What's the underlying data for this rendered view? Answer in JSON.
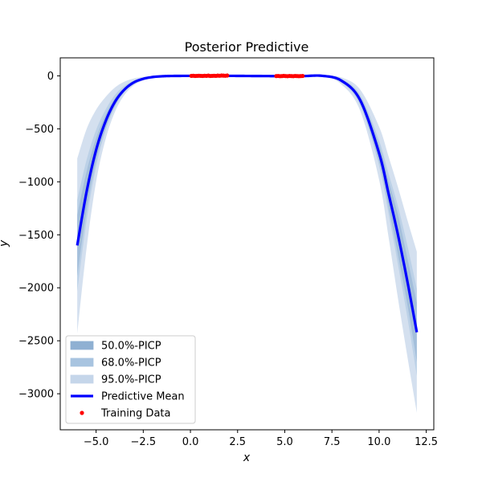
{
  "chart_data": {
    "type": "line",
    "title": "Posterior Predictive",
    "xlabel": "x",
    "ylabel": "y",
    "xlim": [
      -6.9,
      12.9
    ],
    "ylim": [
      -3340,
      170
    ],
    "x_ticks": [
      -5.0,
      -2.5,
      0.0,
      2.5,
      5.0,
      7.5,
      10.0,
      12.5
    ],
    "x_tick_labels": [
      "−5.0",
      "−2.5",
      "0.0",
      "2.5",
      "5.0",
      "7.5",
      "10.0",
      "12.5"
    ],
    "y_ticks": [
      0,
      -500,
      -1000,
      -1500,
      -2000,
      -2500,
      -3000
    ],
    "y_tick_labels": [
      "0",
      "−500",
      "−1000",
      "−1500",
      "−2000",
      "−2500",
      "−3000"
    ],
    "grid": false,
    "legend_placement": "lower-left",
    "series": [
      {
        "name": "Predictive Mean",
        "color": "#0000ff",
        "x": [
          -6,
          -5.5,
          -5,
          -4.5,
          -4,
          -3.5,
          -3,
          -2.5,
          -2,
          -1.5,
          -1,
          0,
          1,
          2,
          3,
          4,
          5,
          6,
          7,
          8,
          9,
          10,
          10.5,
          11,
          11.5,
          12
        ],
        "y": [
          -1600,
          -1090,
          -700,
          -430,
          -245,
          -130,
          -62,
          -28,
          -11,
          -4,
          -1,
          0,
          0,
          0,
          -1,
          -2,
          -3,
          -2,
          0,
          -45,
          -230,
          -730,
          -1110,
          -1500,
          -1940,
          -2420
        ]
      }
    ],
    "intervals": [
      {
        "name": "95.0%-PICP",
        "color": "#c5d6ea",
        "x": [
          -6,
          -5.5,
          -5,
          -4.5,
          -4,
          -3.5,
          -3,
          -2.5,
          -2,
          -1.5,
          -1,
          0,
          1,
          2,
          3,
          4,
          5,
          6,
          7,
          8,
          9,
          10,
          10.5,
          11,
          11.5,
          12
        ],
        "lower": [
          -2430,
          -1620,
          -1000,
          -600,
          -340,
          -180,
          -90,
          -42,
          -18,
          -7,
          -2,
          -1,
          -1,
          -1,
          -3,
          -5,
          -6,
          -5,
          -4,
          -80,
          -330,
          -980,
          -1520,
          -2100,
          -2650,
          -3180
        ],
        "upper": [
          -780,
          -500,
          -320,
          -200,
          -110,
          -55,
          -25,
          -10,
          -3,
          -1,
          0,
          1,
          1,
          1,
          1,
          1,
          1,
          1,
          2,
          -15,
          -130,
          -480,
          -760,
          -1050,
          -1360,
          -1660
        ]
      },
      {
        "name": "68.0%-PICP",
        "color": "#a8c4e0",
        "x": [
          -6,
          -5.5,
          -5,
          -4.5,
          -4,
          -3.5,
          -3,
          -2.5,
          -2,
          -1.5,
          -1,
          0,
          1,
          2,
          3,
          4,
          5,
          6,
          7,
          8,
          9,
          10,
          10.5,
          11,
          11.5,
          12
        ],
        "lower": [
          -2030,
          -1360,
          -860,
          -520,
          -295,
          -155,
          -75,
          -35,
          -14,
          -5,
          -1.5,
          -0.5,
          -0.5,
          -0.5,
          -2,
          -3.5,
          -4.5,
          -3.5,
          -2,
          -62,
          -280,
          -850,
          -1300,
          -1780,
          -2280,
          -2830
        ],
        "upper": [
          -1170,
          -790,
          -510,
          -320,
          -180,
          -95,
          -45,
          -20,
          -7,
          -2.5,
          -0.5,
          0.5,
          0.5,
          0.5,
          0,
          -0.5,
          -1.5,
          -0.5,
          1,
          -28,
          -180,
          -610,
          -920,
          -1230,
          -1600,
          -2010
        ]
      },
      {
        "name": "50.0%-PICP",
        "color": "#8fb0d2",
        "x": [
          -6,
          -5.5,
          -5,
          -4.5,
          -4,
          -3.5,
          -3,
          -2.5,
          -2,
          -1.5,
          -1,
          0,
          1,
          2,
          3,
          4,
          5,
          6,
          7,
          8,
          9,
          10,
          10.5,
          11,
          11.5,
          12
        ],
        "lower": [
          -1890,
          -1260,
          -800,
          -490,
          -280,
          -147,
          -70,
          -32,
          -13,
          -4.5,
          -1.2,
          -0.3,
          -0.3,
          -0.3,
          -1.6,
          -3,
          -4,
          -3,
          -1.5,
          -55,
          -260,
          -810,
          -1230,
          -1690,
          -2160,
          -2700
        ],
        "upper": [
          -1310,
          -900,
          -590,
          -370,
          -210,
          -113,
          -54,
          -24,
          -9,
          -3.5,
          -0.8,
          0.3,
          0.3,
          0.3,
          -0.4,
          -1,
          -2,
          -1,
          0.5,
          -35,
          -200,
          -650,
          -990,
          -1310,
          -1720,
          -2140
        ]
      }
    ],
    "training_data": {
      "name": "Training Data",
      "color": "#ff0000",
      "x": [
        0.05,
        0.15,
        0.25,
        0.35,
        0.45,
        0.55,
        0.65,
        0.75,
        0.85,
        0.95,
        1.05,
        1.15,
        1.25,
        1.35,
        1.45,
        1.55,
        1.65,
        1.75,
        1.85,
        1.95,
        4.55,
        4.65,
        4.75,
        4.85,
        4.95,
        5.05,
        5.15,
        5.25,
        5.35,
        5.45,
        5.55,
        5.65,
        5.75,
        5.85,
        5.95
      ],
      "y": [
        0,
        1,
        -1,
        0,
        1,
        0,
        -1,
        1,
        0,
        2,
        -1,
        0,
        1,
        0,
        2,
        1,
        3,
        2,
        1,
        3,
        -2,
        -1,
        -3,
        -2,
        0,
        -2,
        -3,
        -1,
        -2,
        -3,
        -1,
        -2,
        -3,
        -2,
        -1
      ]
    },
    "legend": [
      {
        "label": "50.0%-PICP",
        "kind": "patch",
        "color": "#8fb0d2"
      },
      {
        "label": "68.0%-PICP",
        "kind": "patch",
        "color": "#a8c4e0"
      },
      {
        "label": "95.0%-PICP",
        "kind": "patch",
        "color": "#c5d6ea"
      },
      {
        "label": "Predictive Mean",
        "kind": "line",
        "color": "#0000ff"
      },
      {
        "label": "Training Data",
        "kind": "dot",
        "color": "#ff0000"
      }
    ]
  }
}
